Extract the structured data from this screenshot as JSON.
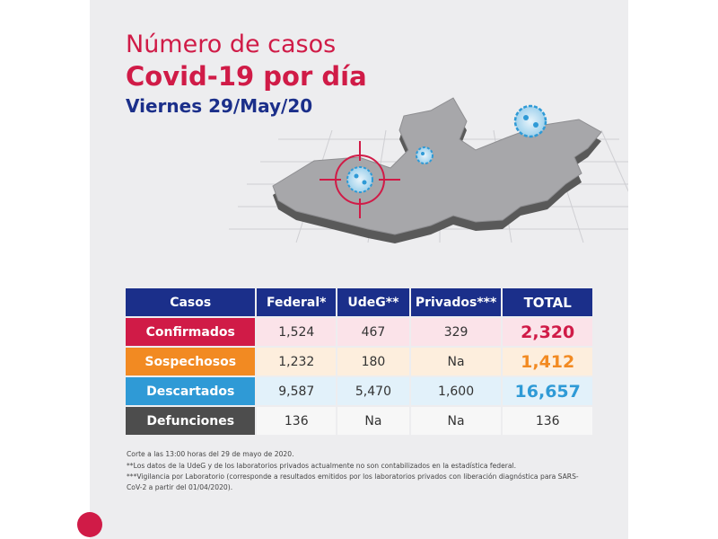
{
  "header": {
    "title_line1": "Número de casos",
    "title_line2": "Covid-19 por día",
    "date": "Viernes 29/May/20"
  },
  "table": {
    "headers": [
      "Casos",
      "Federal*",
      "UdeG**",
      "Privados***",
      "TOTAL"
    ],
    "rows": [
      {
        "label": "Confirmados",
        "federal": "1,524",
        "udeg": "467",
        "privados": "329",
        "total": "2,320"
      },
      {
        "label": "Sospechosos",
        "federal": "1,232",
        "udeg": "180",
        "privados": "Na",
        "total": "1,412"
      },
      {
        "label": "Descartados",
        "federal": "9,587",
        "udeg": "5,470",
        "privados": "1,600",
        "total": "16,657"
      },
      {
        "label": "Defunciones",
        "federal": "136",
        "udeg": "Na",
        "privados": "Na",
        "total": "136"
      }
    ]
  },
  "notes": [
    "Corte a las 13:00 horas del 29 de mayo de 2020.",
    "**Los datos de la UdeG y de los laboratorios privados actualmente no son contabilizados en la estadística federal.",
    "***Vigilancia por Laboratorio (corresponde a resultados emitidos por los laboratorios privados con liberación diagnóstica para SARS-CoV-2 a partir del 01/04/2020)."
  ],
  "colors": {
    "red": "#d01b47",
    "orange": "#f28a22",
    "blue": "#2f9ad6",
    "navy": "#1b2f8a",
    "gray": "#4d4d4d"
  },
  "icons": [
    "jalisco-map",
    "crosshair-target-icon",
    "virus-icon"
  ]
}
